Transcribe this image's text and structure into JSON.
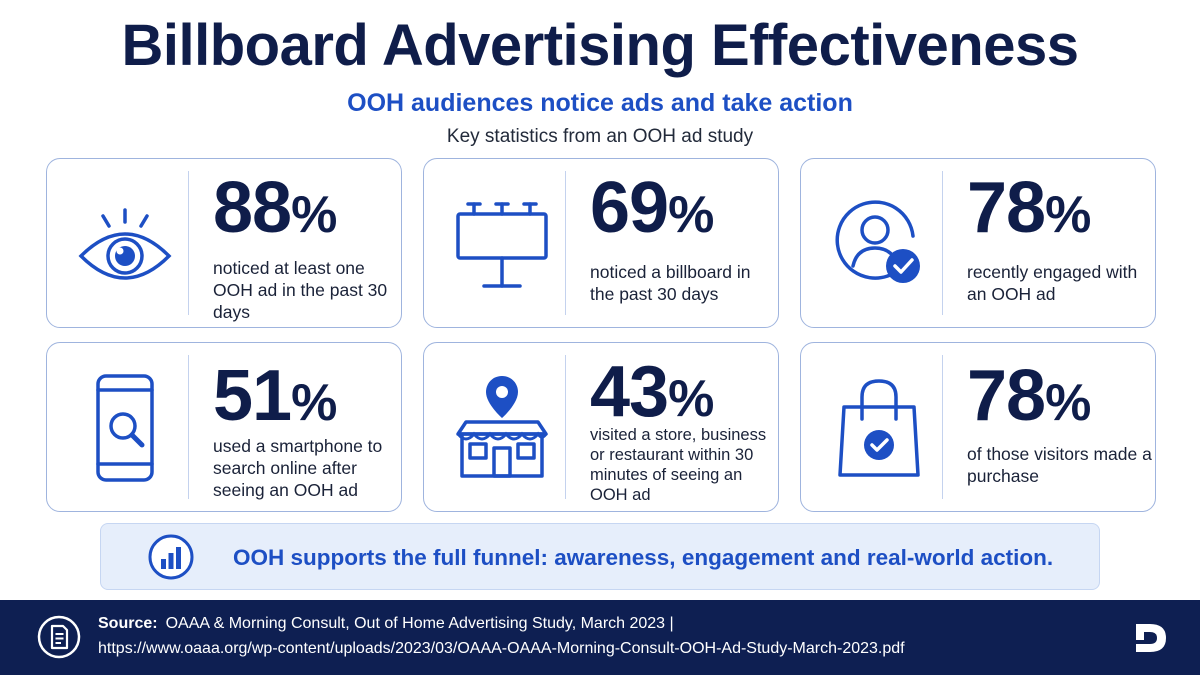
{
  "header": {
    "title": "Billboard Advertising Effectiveness",
    "subtitle": "OOH audiences notice ads and take action",
    "tagline": "Key statistics from an OOH ad study"
  },
  "cards": [
    {
      "number": "88",
      "sign": "%",
      "description": "noticed at least one OOH ad in the past 30 days",
      "icon": "eye-icon"
    },
    {
      "number": "69",
      "sign": "%",
      "description": "noticed a billboard in the past 30 days",
      "icon": "billboard-icon"
    },
    {
      "number": "78",
      "sign": "%",
      "description": "recently engaged with an OOH ad",
      "icon": "user-check-icon"
    },
    {
      "number": "51",
      "sign": "%",
      "description": "used a smartphone to search online after seeing an OOH ad",
      "icon": "smartphone-search-icon"
    },
    {
      "number": "43",
      "sign": "%",
      "description": "visited a store, business or restaurant within 30 minutes of seeing an OOH ad",
      "icon": "storefront-location-icon"
    },
    {
      "number": "78",
      "sign": "%",
      "description": "of those visitors made a purchase",
      "icon": "shopping-bag-check-icon"
    }
  ],
  "banner": {
    "text": "OOH supports the full funnel: awareness, engagement and real-world action.",
    "icon": "bar-chart-icon"
  },
  "footer": {
    "source_label": "Source:",
    "source_text": "OAAA & Morning Consult, Out of Home Advertising Study, March 2023  |",
    "url": "https://www.oaaa.org/wp-content/uploads/2023/03/OAAA-OAAA-Morning-Consult-OOH-Ad-Study-March-2023.pdf",
    "icon": "document-icon",
    "logo": "brand-logo"
  },
  "colors": {
    "navy": "#0f1d4a",
    "accent_blue": "#1d4fc4",
    "card_border": "#9fb4de",
    "banner_bg": "#e6eefb",
    "footer_bg": "#0e1f52"
  }
}
